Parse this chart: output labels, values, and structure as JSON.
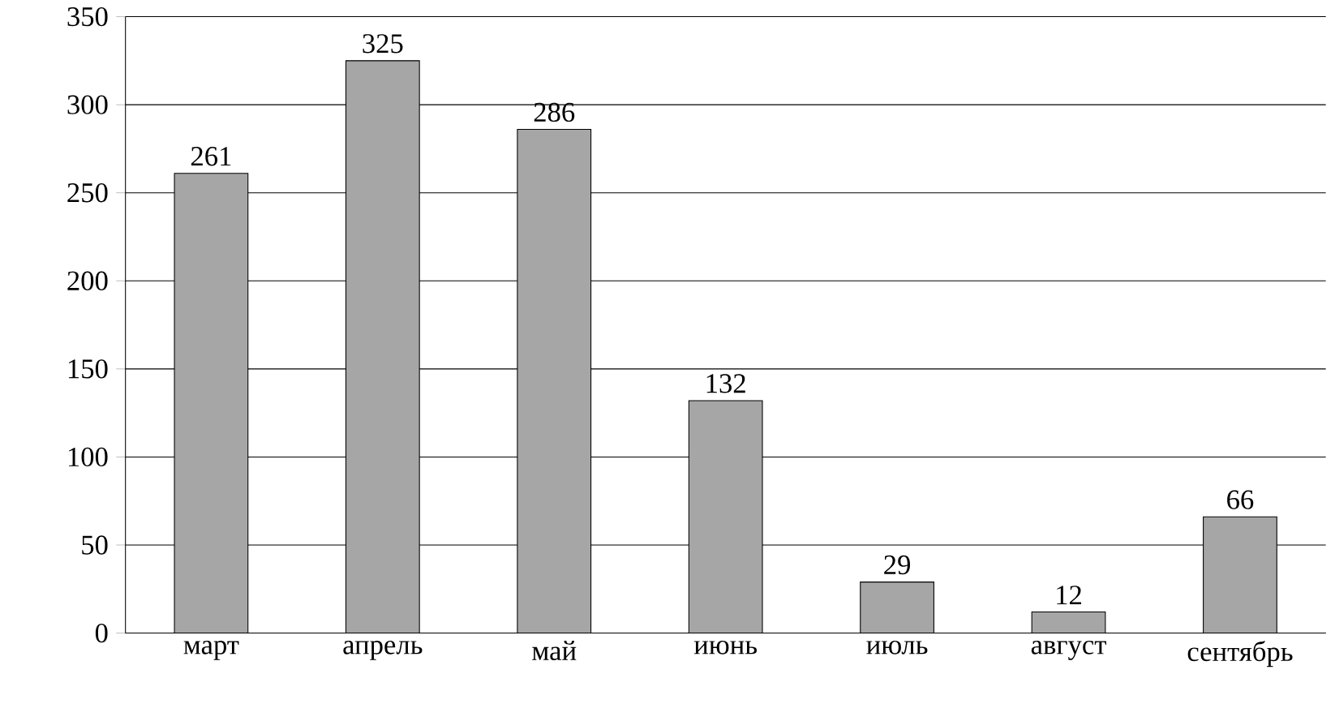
{
  "chart_data": {
    "type": "bar",
    "categories": [
      "март",
      "апрель",
      "май",
      "июнь",
      "июль",
      "август",
      "сентябрь"
    ],
    "values": [
      261,
      325,
      286,
      132,
      29,
      12,
      66
    ],
    "color": "#a6a6a6",
    "ylim": [
      0,
      350
    ],
    "yticks": [
      0,
      50,
      100,
      150,
      200,
      250,
      300,
      350
    ],
    "grid": "y",
    "data_labels": true
  }
}
